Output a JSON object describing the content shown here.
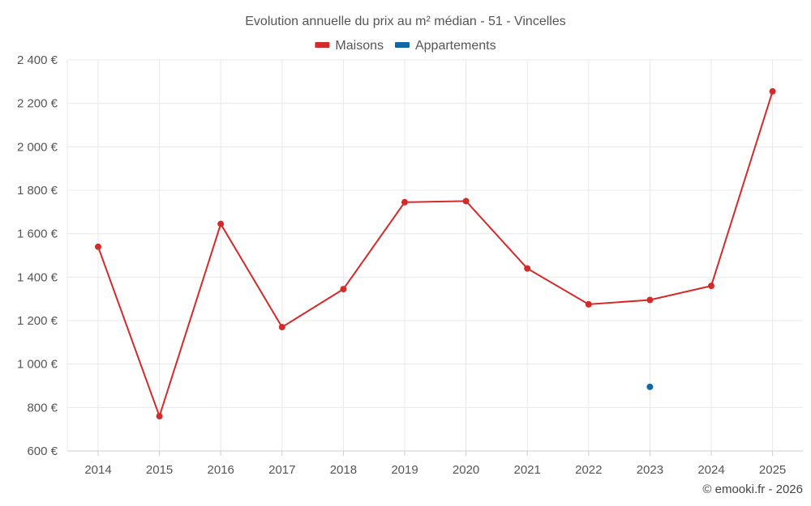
{
  "chart_data": {
    "type": "line",
    "title": "Evolution annuelle du prix au m² médian - 51 - Vincelles",
    "categories": [
      "2014",
      "2015",
      "2016",
      "2017",
      "2018",
      "2019",
      "2020",
      "2021",
      "2022",
      "2023",
      "2024",
      "2025"
    ],
    "series": [
      {
        "name": "Maisons",
        "color": "#d42a2a",
        "values": [
          1540,
          760,
          1645,
          1170,
          1345,
          1745,
          1750,
          1440,
          1275,
          1295,
          1360,
          2255
        ]
      },
      {
        "name": "Appartements",
        "color": "#1467a6",
        "values": [
          null,
          null,
          null,
          null,
          null,
          null,
          null,
          null,
          null,
          895,
          null,
          null
        ]
      }
    ],
    "ylim": [
      600,
      2400
    ],
    "yticks": [
      600,
      800,
      1000,
      1200,
      1400,
      1600,
      1800,
      2000,
      2200,
      2400
    ],
    "ytick_labels": [
      "600 €",
      "800 €",
      "1 000 €",
      "1 200 €",
      "1 400 €",
      "1 600 €",
      "1 800 €",
      "2 000 €",
      "2 200 €",
      "2 400 €"
    ],
    "grid": true,
    "legend_position": "top-center"
  },
  "credit": "© emooki.fr - 2026"
}
